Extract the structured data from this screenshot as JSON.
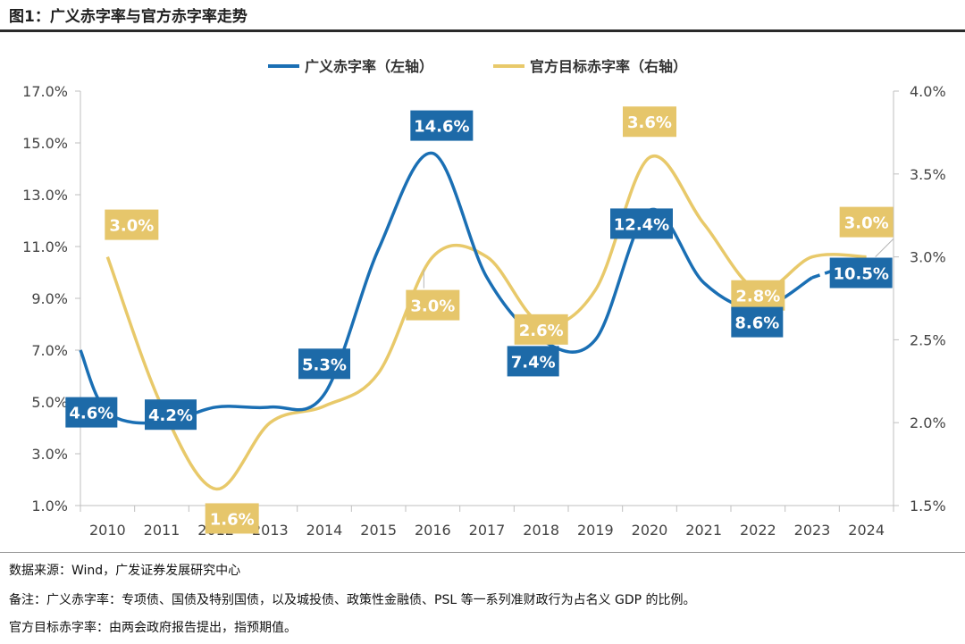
{
  "figure": {
    "title": "图1：广义赤字率与官方赤字率走势"
  },
  "notes": {
    "source": "数据来源：Wind，广发证券发展研究中心",
    "note1": "备注：广义赤字率：专项债、国债及特别国债，以及城投债、政策性金融债、PSL 等一系列准财政行为占名义 GDP 的比例。",
    "note2": "官方目标赤字率：由两会政府报告提出，指预期值。"
  },
  "colors": {
    "broad": "#1a6fb4",
    "official": "#e8c96a",
    "broad_label_bg": "#1d6aa8",
    "official_label_bg": "#e6c66b",
    "axis": "#bfbfbf",
    "text": "#444444"
  },
  "chart_data": {
    "type": "line",
    "title": "",
    "categories": [
      "2010",
      "2011",
      "2012",
      "2013",
      "2014",
      "2015",
      "2016",
      "2017",
      "2018",
      "2019",
      "2020",
      "2021",
      "2022",
      "2023",
      "2024"
    ],
    "left_axis": {
      "ylim": [
        1.0,
        17.0
      ],
      "ticks": [
        "1.0%",
        "3.0%",
        "5.0%",
        "7.0%",
        "9.0%",
        "11.0%",
        "13.0%",
        "15.0%",
        "17.0%"
      ],
      "tick_values": [
        1,
        3,
        5,
        7,
        9,
        11,
        13,
        15,
        17
      ]
    },
    "right_axis": {
      "ylim": [
        1.5,
        4.0
      ],
      "ticks": [
        "1.5%",
        "2.0%",
        "2.5%",
        "3.0%",
        "3.5%",
        "4.0%"
      ],
      "tick_values": [
        1.5,
        2.0,
        2.5,
        3.0,
        3.5,
        4.0
      ]
    },
    "legend_position": "top-center",
    "series": [
      {
        "name": "广义赤字率（左轴）",
        "axis": "left",
        "values": [
          4.6,
          4.2,
          4.8,
          4.8,
          5.3,
          10.9,
          14.6,
          9.8,
          7.4,
          7.4,
          12.4,
          9.6,
          8.6,
          9.8,
          10.5
        ],
        "dashed_from_index": 13,
        "data_labels": [
          {
            "index": 0,
            "text": "4.6%"
          },
          {
            "index": 1,
            "text": "4.2%"
          },
          {
            "index": 4,
            "text": "5.3%"
          },
          {
            "index": 6,
            "text": "14.6%"
          },
          {
            "index": 8,
            "text": "7.4%"
          },
          {
            "index": 10,
            "text": "12.4%"
          },
          {
            "index": 12,
            "text": "8.6%"
          },
          {
            "index": 14,
            "text": "10.5%"
          }
        ]
      },
      {
        "name": "官方目标赤字率（右轴）",
        "axis": "right",
        "values": [
          3.0,
          2.1,
          1.6,
          2.0,
          2.1,
          2.3,
          3.0,
          3.0,
          2.6,
          2.8,
          3.6,
          3.2,
          2.8,
          3.0,
          3.0
        ],
        "data_labels": [
          {
            "index": 0,
            "text": "3.0%"
          },
          {
            "index": 2,
            "text": "1.6%"
          },
          {
            "index": 6,
            "text": "3.0%"
          },
          {
            "index": 8,
            "text": "2.6%"
          },
          {
            "index": 10,
            "text": "3.6%"
          },
          {
            "index": 12,
            "text": "2.8%"
          },
          {
            "index": 14,
            "text": "3.0%"
          }
        ]
      }
    ]
  }
}
